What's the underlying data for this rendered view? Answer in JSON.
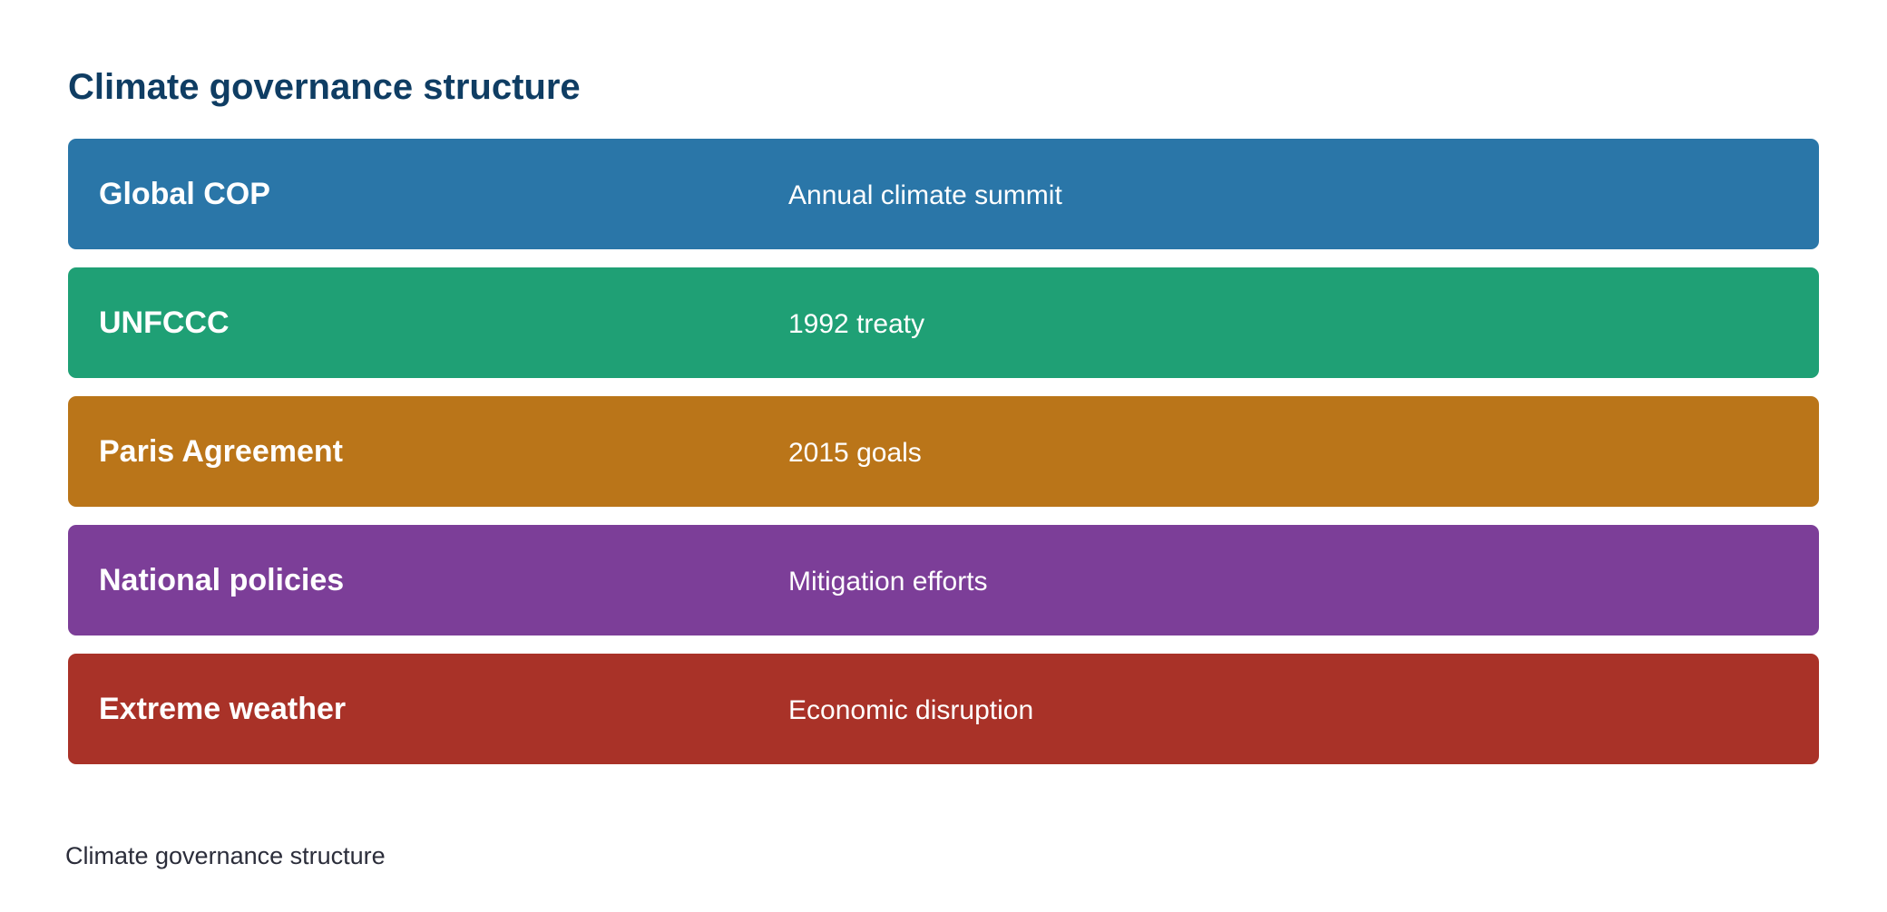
{
  "title": "Climate governance structure",
  "rows": [
    {
      "label": "Global COP",
      "description": "Annual climate summit",
      "color": "#2a76a8"
    },
    {
      "label": "UNFCCC",
      "description": "1992 treaty",
      "color": "#1fa075"
    },
    {
      "label": "Paris Agreement",
      "description": "2015 goals",
      "color": "#ba7519"
    },
    {
      "label": "National policies",
      "description": "Mitigation efforts",
      "color": "#7c3e98"
    },
    {
      "label": "Extreme weather",
      "description": "Economic disruption",
      "color": "#a93228"
    }
  ],
  "caption": "Climate governance structure"
}
